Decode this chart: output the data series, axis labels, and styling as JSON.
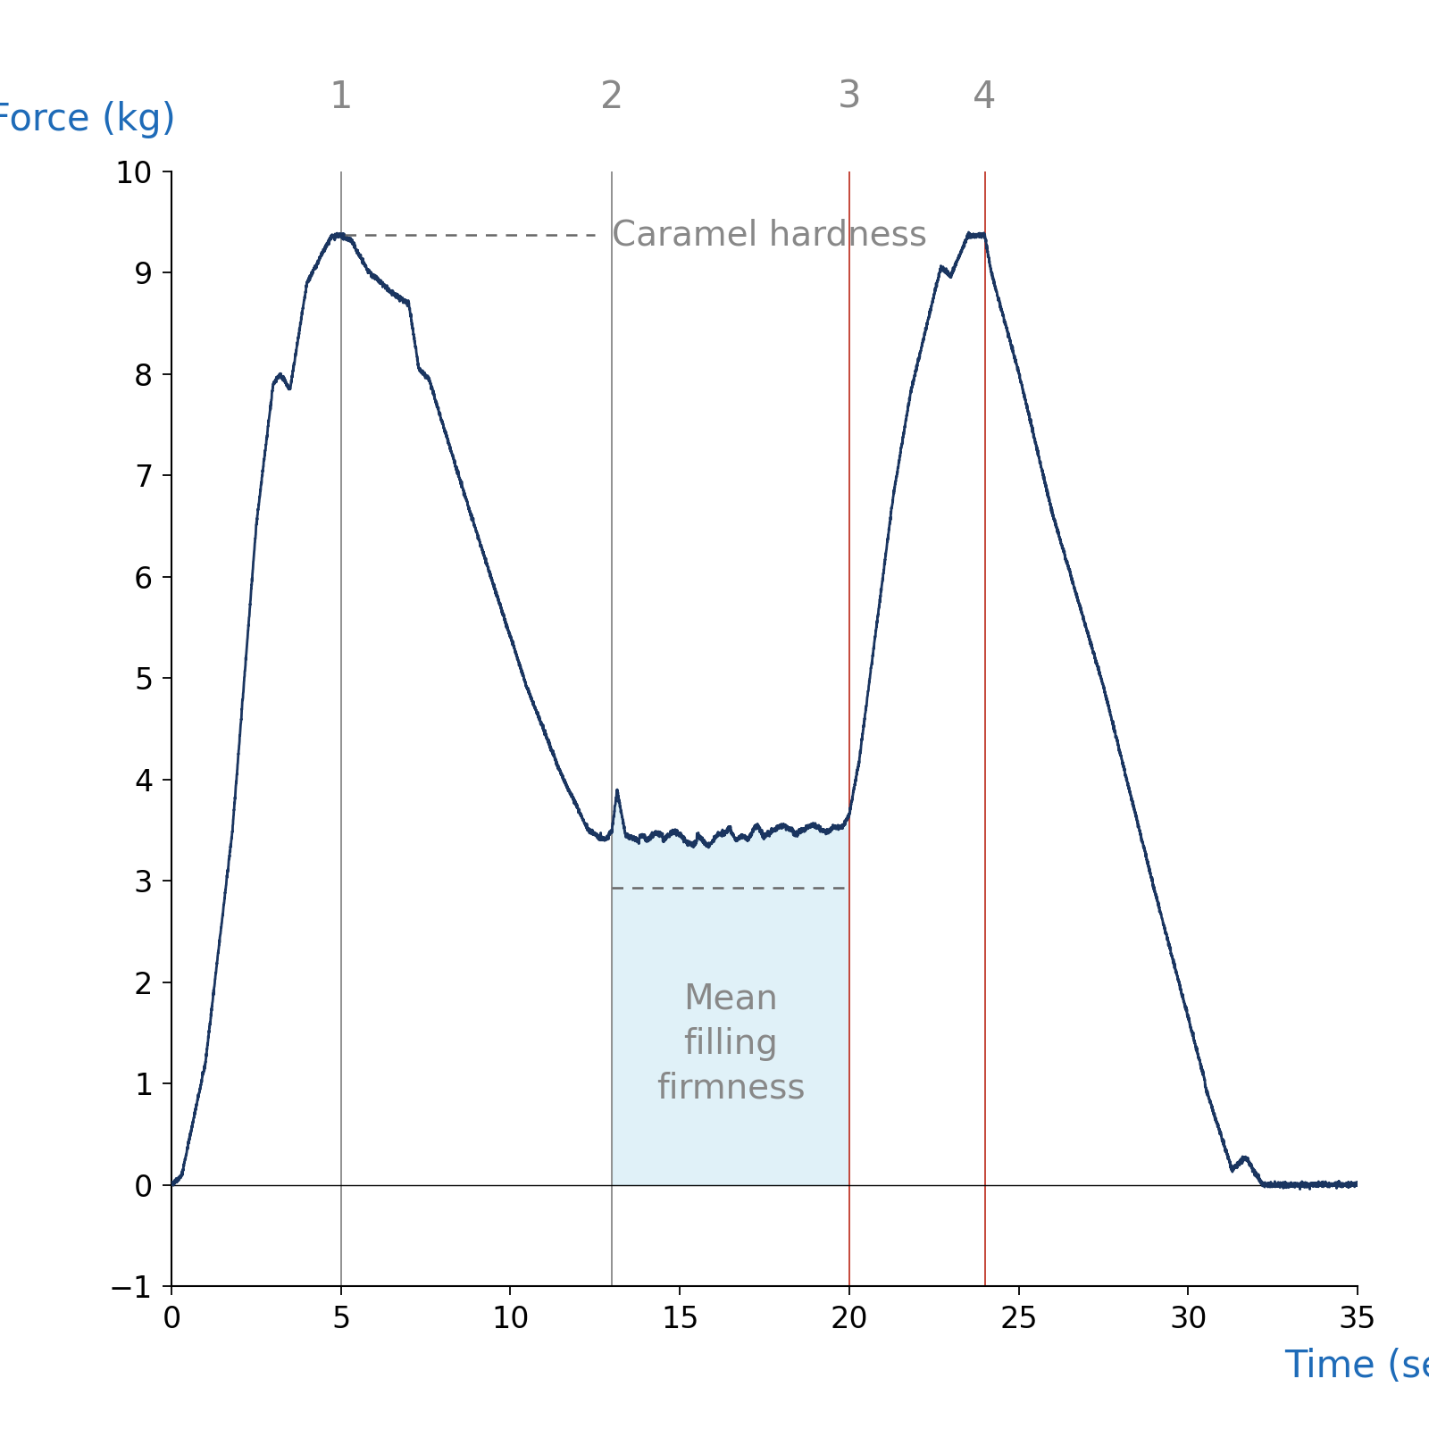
{
  "xlabel": "Time (sec)",
  "ylabel": "Force (kg)",
  "xlabel_color": "#1e6bb8",
  "ylabel_color": "#1e6bb8",
  "xlim": [
    0,
    35
  ],
  "ylim": [
    -1,
    10
  ],
  "xticks": [
    0,
    5,
    10,
    15,
    20,
    25,
    30,
    35
  ],
  "yticks": [
    -1,
    0,
    1,
    2,
    3,
    4,
    5,
    6,
    7,
    8,
    9,
    10
  ],
  "line_color": "#1a3560",
  "line_width": 2.0,
  "vlines_gray": [
    5,
    13
  ],
  "vlines_red": [
    20,
    24
  ],
  "vline_labels": [
    "1",
    "2",
    "3",
    "4"
  ],
  "vline_positions": [
    5,
    13,
    20,
    24
  ],
  "caramel_hardness_y": 9.37,
  "caramel_hardness_label": "Caramel hardness",
  "mean_filling_label": "Mean\nfilling\nfirmness",
  "mean_filling_y": 2.93,
  "mean_filling_x1": 13,
  "mean_filling_x2": 20,
  "fill_color": "#cce8f4",
  "fill_alpha": 0.6,
  "background_color": "#ffffff",
  "label_fontsize": 30,
  "tick_fontsize": 24,
  "annotation_fontsize": 28,
  "vline_label_fontsize": 30,
  "gray_color": "#888888",
  "annotation_color": "#666666"
}
